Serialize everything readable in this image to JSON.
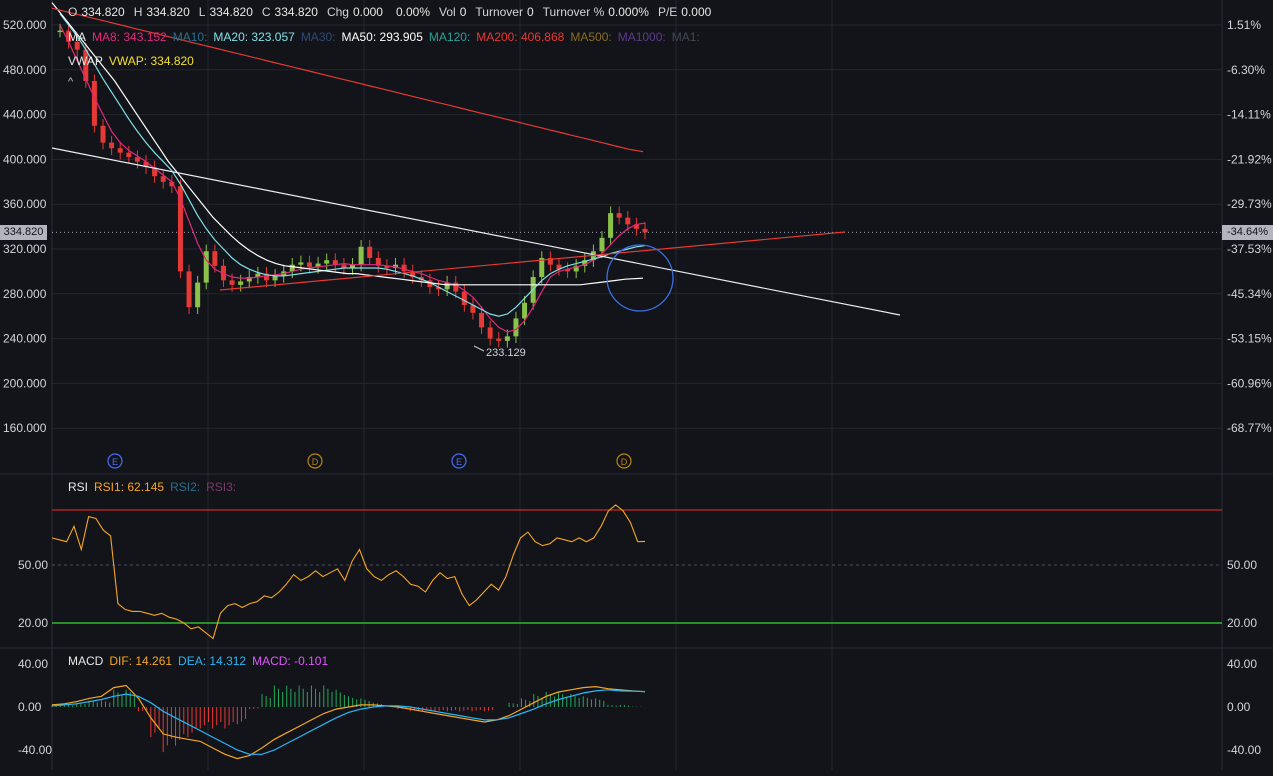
{
  "header": {
    "ohlc": [
      {
        "label": "O",
        "value": "334.820"
      },
      {
        "label": "H",
        "value": "334.820"
      },
      {
        "label": "L",
        "value": "334.820"
      },
      {
        "label": "C",
        "value": "334.820"
      },
      {
        "label": "Chg",
        "value": "0.000"
      },
      {
        "label": "",
        "value": "0.00%"
      },
      {
        "label": "Vol",
        "value": "0"
      },
      {
        "label": "Turnover",
        "value": "0"
      },
      {
        "label": "Turnover %",
        "value": "0.000%"
      },
      {
        "label": "P/E",
        "value": "0.000"
      }
    ]
  },
  "legends": {
    "ma": {
      "title": "MA",
      "items": [
        {
          "text": "MA8: 343.152",
          "color": "#e0287a"
        },
        {
          "text": "MA10:",
          "color": "#2a6e8c"
        },
        {
          "text": "MA20: 323.057",
          "color": "#7fe0e6"
        },
        {
          "text": "MA30:",
          "color": "#2f4a7a"
        },
        {
          "text": "MA50: 293.905",
          "color": "#ffffff"
        },
        {
          "text": "MA120:",
          "color": "#2aa198"
        },
        {
          "text": "MA200: 406.868",
          "color": "#e53935"
        },
        {
          "text": "MA500:",
          "color": "#8a6d1f"
        },
        {
          "text": "MA1000:",
          "color": "#5b3a8c"
        },
        {
          "text": "MA1:",
          "color": "#444a55"
        }
      ]
    },
    "vwap": {
      "title": "VWAP",
      "items": [
        {
          "text": "VWAP: 334.820",
          "color": "#f5e028"
        }
      ]
    },
    "collapse_glyph": "^",
    "rsi": {
      "title": "RSI",
      "items": [
        {
          "text": "RSI1: 62.145",
          "color": "#f5a623"
        },
        {
          "text": "RSI2:",
          "color": "#2a6e8c"
        },
        {
          "text": "RSI3:",
          "color": "#7a3a6a"
        }
      ]
    },
    "macd": {
      "title": "MACD",
      "items": [
        {
          "text": "DIF: 14.261",
          "color": "#f5a623"
        },
        {
          "text": "DEA: 14.312",
          "color": "#29b6f6"
        },
        {
          "text": "MACD: -0.101",
          "color": "#e056fd"
        }
      ]
    }
  },
  "price_axis": {
    "ticks": [
      "520.000",
      "480.000",
      "440.000",
      "400.000",
      "360.000",
      "320.000",
      "280.000",
      "240.000",
      "200.000",
      "160.000"
    ],
    "tick_values": [
      520,
      480,
      440,
      400,
      360,
      320,
      280,
      240,
      200,
      160
    ],
    "current_price": "334.820",
    "current_price_value": 334.82
  },
  "percent_axis": {
    "ticks": [
      "1.51%",
      "-6.30%",
      "-14.11%",
      "-21.92%",
      "-29.73%",
      "-37.53%",
      "-45.34%",
      "-53.15%",
      "-60.96%",
      "-68.77%"
    ],
    "current_percent": "-34.64%"
  },
  "low_annotation": "233.129",
  "events": [
    {
      "label": "E",
      "color": "#4a6cf7"
    },
    {
      "label": "D",
      "color": "#b8860b"
    },
    {
      "label": "E",
      "color": "#4a6cf7"
    },
    {
      "label": "D",
      "color": "#b8860b"
    }
  ],
  "rsi_axis": {
    "ticks": [
      "50.00",
      "20.00"
    ],
    "upper_line": 80,
    "lower_line": 20,
    "upper_color": "#c62828",
    "lower_color": "#2eb82e"
  },
  "macd_axis": {
    "ticks": [
      "40.00",
      "0.00",
      "-40.00"
    ]
  },
  "colors": {
    "background": "#131419",
    "up_candle": "#8bc34a",
    "down_candle": "#e53935",
    "grid": "#23262e"
  },
  "chart_data": {
    "type": "candlestick",
    "price": {
      "closes": [
        515,
        505,
        498,
        470,
        430,
        415,
        410,
        406,
        402,
        398,
        393,
        385,
        380,
        376,
        300,
        268,
        290,
        318,
        305,
        292,
        288,
        291,
        295,
        298,
        292,
        296,
        300,
        306,
        308,
        304,
        307,
        310,
        306,
        303,
        306,
        322,
        312,
        305,
        303,
        306,
        300,
        295,
        292,
        286,
        284,
        290,
        282,
        270,
        263,
        250,
        240,
        238,
        242,
        258,
        272,
        295,
        312,
        306,
        302,
        300,
        305,
        310,
        318,
        330,
        352,
        348,
        342,
        338,
        334.82
      ],
      "low_annotation": 233.129,
      "current": 334.82
    },
    "ma": {
      "ma8": [
        520,
        505,
        488,
        472,
        455,
        440,
        425,
        415,
        408,
        403,
        398,
        392,
        386,
        380,
        365,
        345,
        325,
        310,
        302,
        298,
        295,
        294,
        294,
        295,
        296,
        297,
        298,
        300,
        302,
        303,
        304,
        305,
        306,
        307,
        306,
        306,
        306,
        306,
        305,
        304,
        302,
        300,
        298,
        295,
        292,
        290,
        288,
        283,
        277,
        268,
        258,
        250,
        246,
        248,
        256,
        268,
        282,
        295,
        300,
        302,
        304,
        306,
        310,
        316,
        324,
        332,
        338,
        342,
        343.15
      ],
      "ma20": [
        530,
        520,
        510,
        498,
        485,
        472,
        460,
        448,
        436,
        425,
        415,
        406,
        398,
        390,
        378,
        364,
        350,
        338,
        328,
        320,
        312,
        306,
        302,
        299,
        297,
        296,
        296,
        297,
        298,
        299,
        300,
        301,
        302,
        303,
        303,
        303,
        303,
        303,
        302,
        300,
        298,
        296,
        293,
        290,
        286,
        282,
        278,
        274,
        270,
        266,
        262,
        260,
        262,
        268,
        276,
        284,
        292,
        298,
        302,
        305,
        307,
        309,
        311,
        313,
        316,
        318,
        320,
        322,
        323.06
      ],
      "ma50": [
        540,
        530,
        520,
        510,
        500,
        490,
        480,
        470,
        458,
        446,
        434,
        422,
        410,
        398,
        388,
        378,
        368,
        358,
        348,
        340,
        332,
        325,
        319,
        314,
        310,
        307,
        305,
        304,
        303,
        302,
        301,
        300,
        299,
        298,
        298,
        297,
        296,
        295,
        294,
        293,
        292,
        291,
        290,
        289,
        288,
        288,
        288,
        288,
        288,
        288,
        288,
        288,
        288,
        288,
        288,
        288,
        288,
        288,
        288,
        288,
        289,
        290,
        291,
        292,
        293,
        293.5,
        293.9
      ],
      "ma200": [
        535,
        532,
        529,
        526,
        523,
        520,
        517,
        514,
        511,
        508,
        505,
        502,
        499,
        496,
        493,
        490,
        487,
        484,
        481,
        478,
        475,
        472,
        469,
        466,
        463,
        460,
        457,
        454,
        451,
        448,
        445,
        442,
        439,
        436,
        433,
        430,
        427,
        424,
        421,
        418,
        415,
        412,
        409,
        406.87
      ]
    },
    "trendlines": [
      {
        "color": "#e8eef2",
        "from": {
          "t": 0,
          "price": 410
        },
        "to": {
          "t": 1,
          "price": 260
        }
      },
      {
        "color": "#e53935",
        "from": {
          "t": 0.18,
          "price": 283
        },
        "to": {
          "t": 0.78,
          "price": 334
        }
      }
    ],
    "rsi": {
      "values": [
        64,
        63,
        62,
        70,
        58,
        75,
        74,
        68,
        65,
        30,
        27,
        26,
        26,
        25,
        24,
        25,
        23,
        22,
        20,
        17,
        18,
        15,
        12,
        25,
        29,
        30,
        28,
        30,
        31,
        34,
        33,
        36,
        40,
        45,
        42,
        44,
        47,
        44,
        46,
        48,
        42,
        52,
        58,
        48,
        44,
        42,
        45,
        47,
        44,
        40,
        39,
        36,
        42,
        46,
        43,
        44,
        35,
        29,
        32,
        36,
        40,
        37,
        44,
        55,
        64,
        67,
        62,
        60,
        61,
        64,
        63,
        62,
        64,
        62,
        64,
        70,
        78,
        81,
        78,
        72,
        62,
        62.145
      ],
      "ylim": [
        0,
        100
      ]
    },
    "macd": {
      "dif": [
        2,
        3,
        5,
        8,
        10,
        18,
        20,
        8,
        -10,
        -25,
        -28,
        -30,
        -32,
        -38,
        -44,
        -48,
        -45,
        -38,
        -30,
        -24,
        -18,
        -12,
        -6,
        -2,
        0,
        2,
        2,
        1,
        0,
        -2,
        -4,
        -6,
        -8,
        -10,
        -12,
        -14,
        -12,
        -8,
        -2,
        4,
        10,
        14,
        16,
        18,
        19,
        17,
        16,
        15,
        14.26
      ],
      "dea": [
        1,
        2,
        3,
        5,
        7,
        10,
        12,
        10,
        4,
        -4,
        -10,
        -16,
        -22,
        -28,
        -34,
        -40,
        -44,
        -44,
        -40,
        -34,
        -28,
        -22,
        -16,
        -10,
        -5,
        -2,
        0,
        1,
        1,
        0,
        -2,
        -4,
        -6,
        -8,
        -10,
        -12,
        -12,
        -10,
        -6,
        -2,
        3,
        7,
        10,
        13,
        15,
        16,
        15,
        14.8,
        14.31
      ],
      "ylim": [
        -45,
        45
      ]
    }
  }
}
